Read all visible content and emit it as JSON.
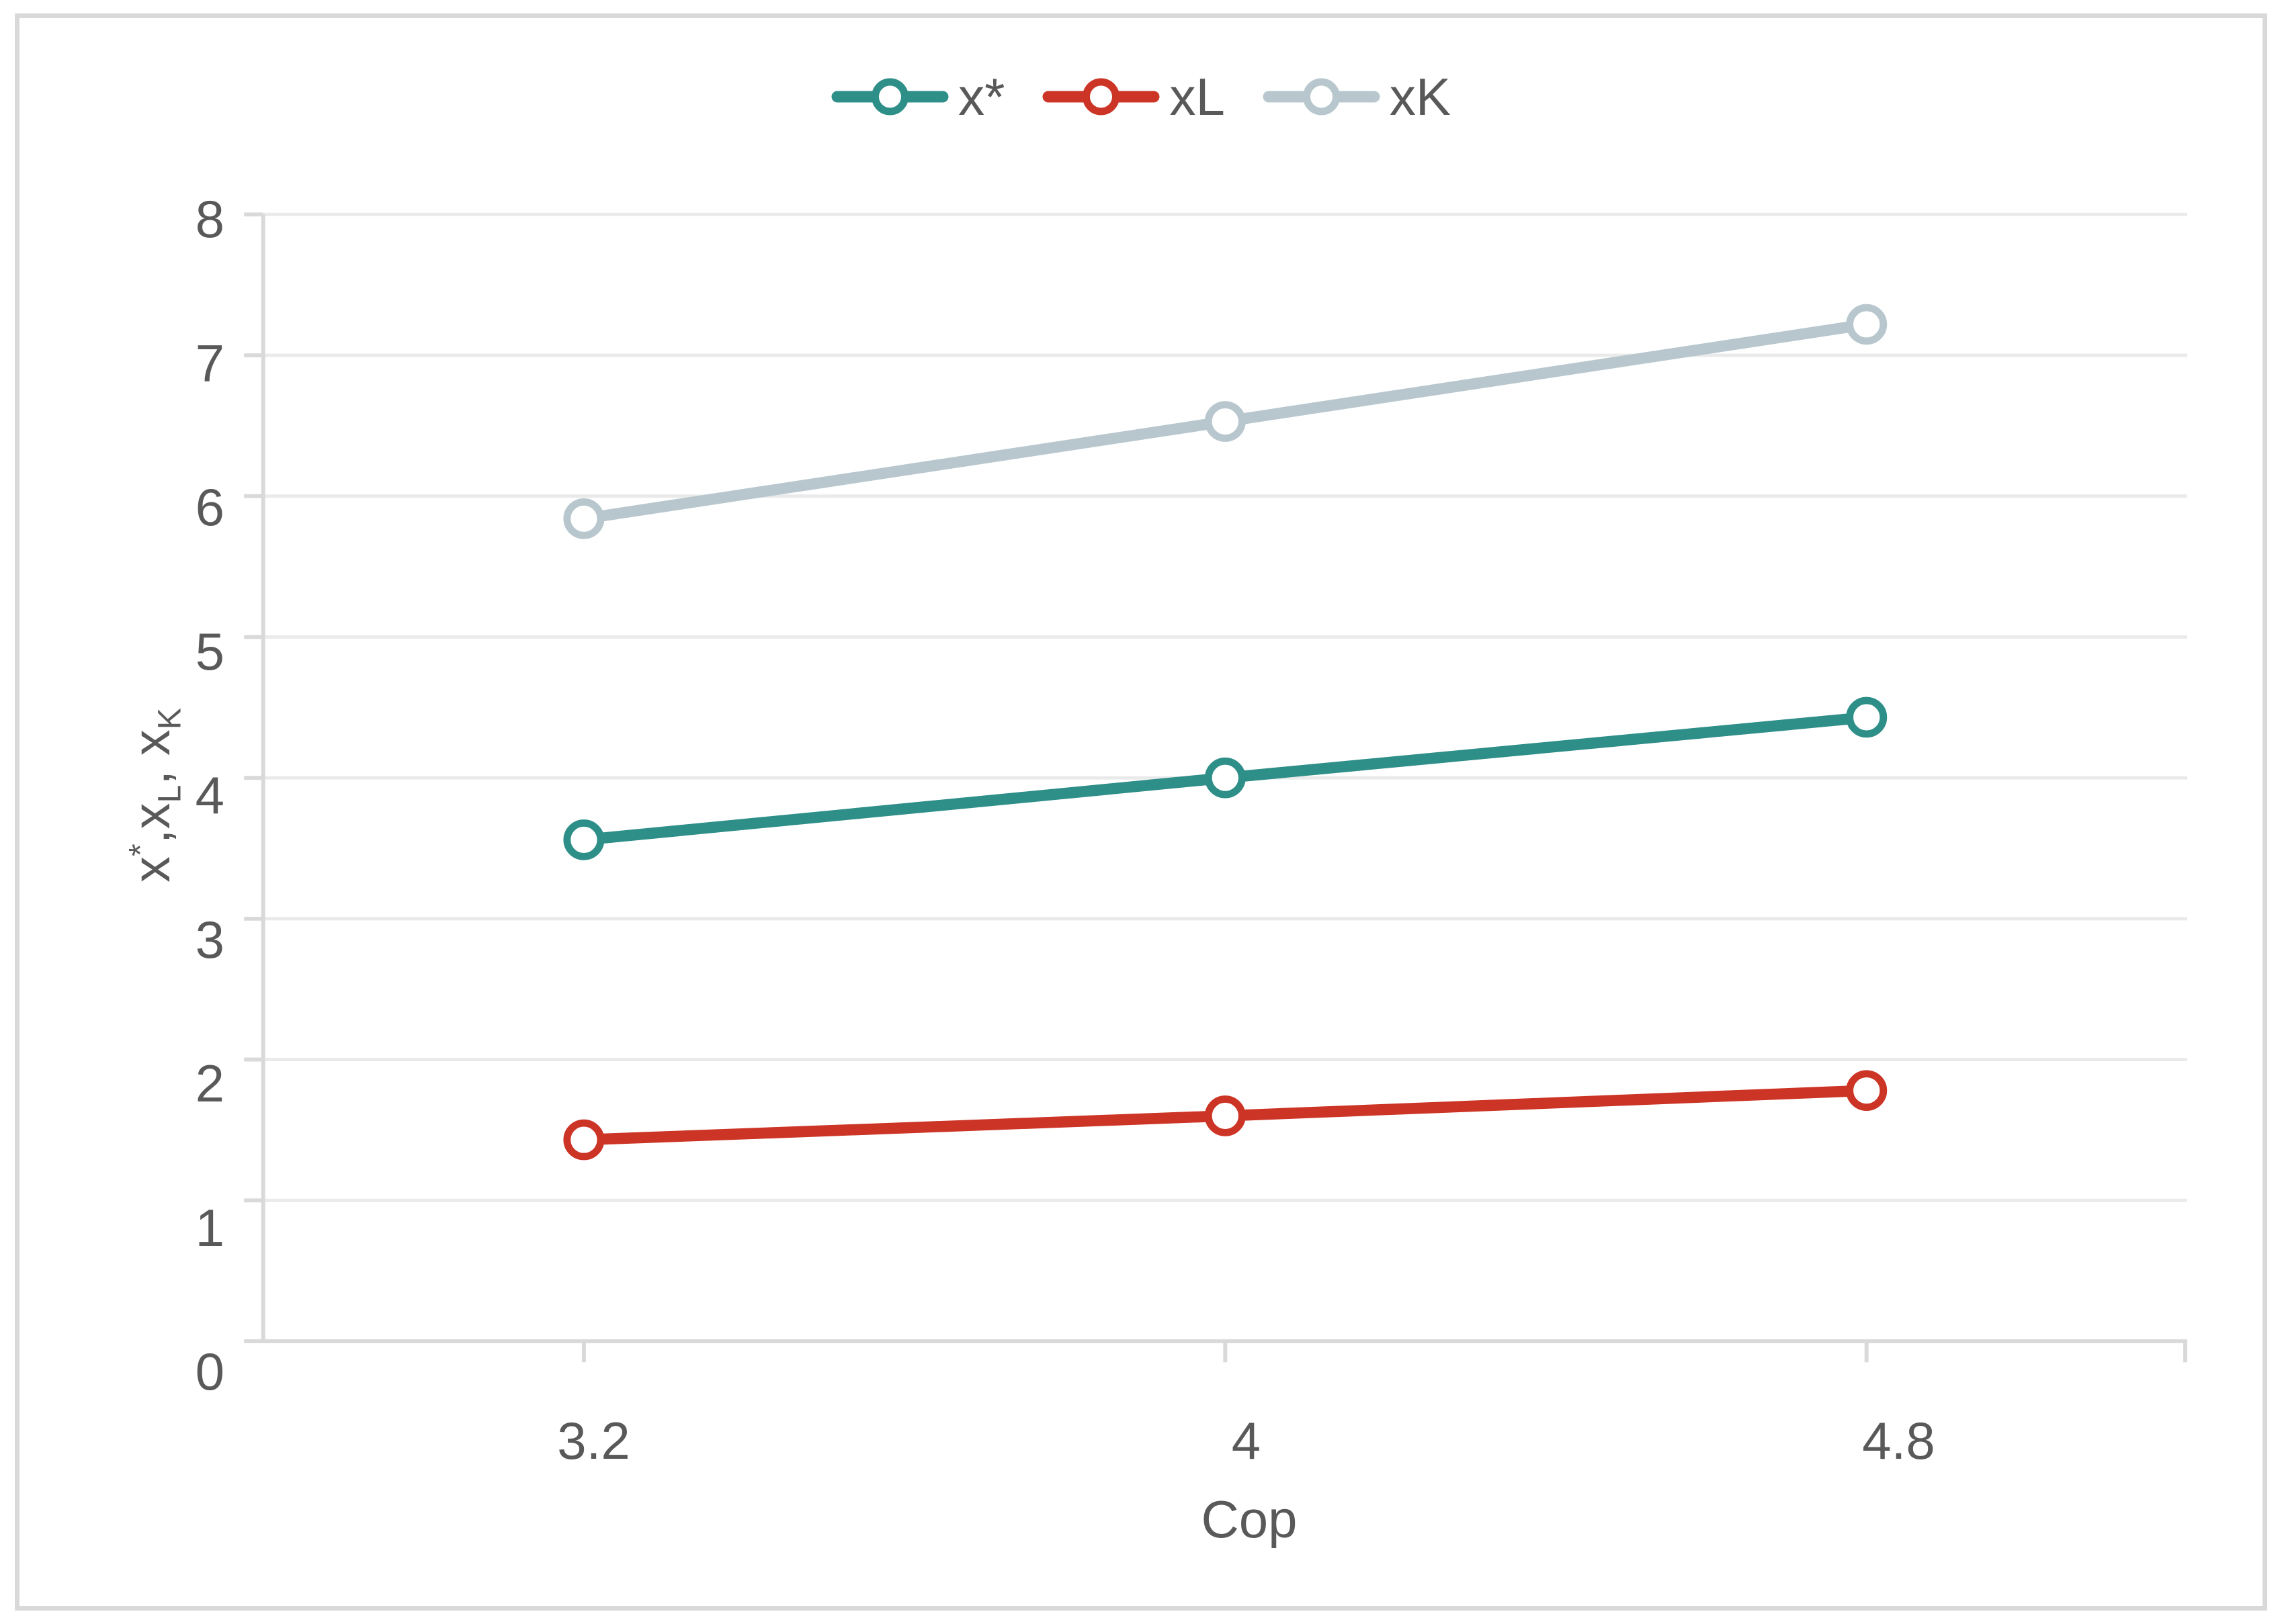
{
  "chart_data": {
    "type": "line",
    "title": "",
    "xlabel": "Cop",
    "ylabel": "x*,xL, xK",
    "ylabel_parts": [
      {
        "text": "x"
      },
      {
        "sup": "*"
      },
      {
        "text": ",x"
      },
      {
        "sub": "L"
      },
      {
        "text": ", x"
      },
      {
        "sub": "K"
      }
    ],
    "categories": [
      "3.2",
      "4",
      "4.8"
    ],
    "x": [
      3.2,
      4,
      4.8
    ],
    "series": [
      {
        "name": "x*",
        "color": "#2E8E88",
        "values": [
          3.56,
          4.0,
          4.43
        ]
      },
      {
        "name": "xL",
        "color": "#CC3426",
        "values": [
          1.43,
          1.6,
          1.78
        ]
      },
      {
        "name": "xK",
        "color": "#B8C7CE",
        "values": [
          5.84,
          6.53,
          7.22
        ]
      }
    ],
    "ylim": [
      0,
      8
    ],
    "ytick_step": 1,
    "yticks": [
      "0",
      "1",
      "2",
      "3",
      "4",
      "5",
      "6",
      "7",
      "8"
    ],
    "grid": true,
    "legend_position": "top",
    "marker_style": "open-circle",
    "colors": {
      "gridline": "#EAEAEA",
      "axis_line": "#D9D9D9",
      "text": "#595959",
      "frame_border": "#D9D9D9",
      "marker_fill": "#FFFFFF"
    }
  }
}
